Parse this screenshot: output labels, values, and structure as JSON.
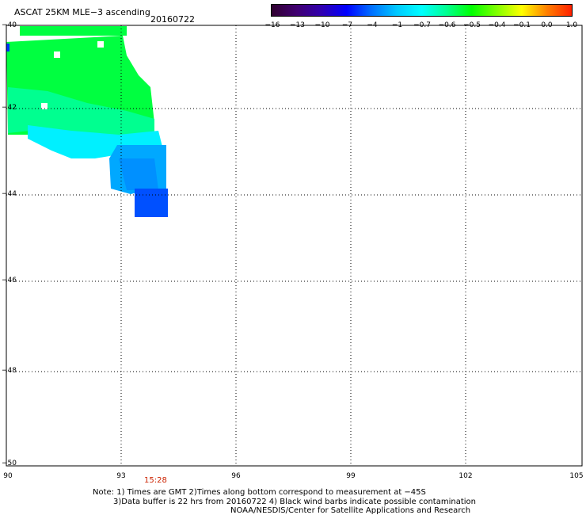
{
  "header": {
    "title": "ASCAT 25KM MLE−3 ascending",
    "date": "20160722"
  },
  "colorbar": {
    "ticks": [
      "−16",
      "−13",
      "−10",
      "−7",
      "−4",
      "−1",
      "−0.7",
      "−0.6",
      "−0.5",
      "−0.4",
      "−0.1",
      "0.0",
      "1.0"
    ],
    "colors": [
      "#300030",
      "#400070",
      "#3000b0",
      "#0000ff",
      "#0070ff",
      "#00c8ff",
      "#00ffff",
      "#00ff90",
      "#00ff00",
      "#80ff00",
      "#ffff00",
      "#ff8000",
      "#ff2000"
    ]
  },
  "axes": {
    "x_ticks": [
      "90",
      "93",
      "96",
      "99",
      "102",
      "105"
    ],
    "y_ticks": [
      "−40",
      "−42",
      "−44",
      "−46",
      "−48",
      "−50"
    ],
    "x_range": [
      90,
      105
    ],
    "y_range": [
      -50,
      -40
    ],
    "time_label": "15:28"
  },
  "notes": {
    "line1": "Note: 1) Times are GMT 2)Times along bottom correspond to measurement at −45S",
    "line2": "3)Data buffer is 22 hrs from 20160722 4) Black wind barbs indicate possible contamination",
    "line3": "NOAA/NESDIS/Center for Satellite Applications and Research"
  },
  "colors": {
    "green": "#00ff40",
    "aqua_green": "#00ffa0",
    "cyan": "#00f0ff",
    "light_blue": "#00b0ff",
    "blue": "#0090ff",
    "dark_blue": "#0050ff"
  }
}
